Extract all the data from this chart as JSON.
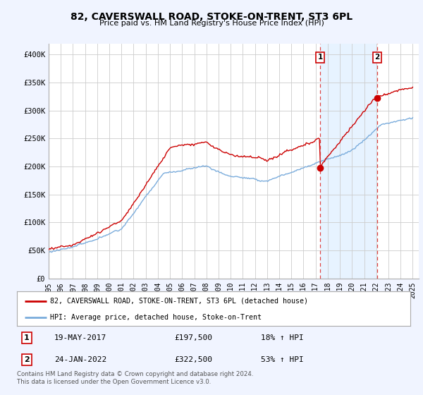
{
  "title": "82, CAVERSWALL ROAD, STOKE-ON-TRENT, ST3 6PL",
  "subtitle": "Price paid vs. HM Land Registry's House Price Index (HPI)",
  "ylim": [
    0,
    420000
  ],
  "yticks": [
    0,
    50000,
    100000,
    150000,
    200000,
    250000,
    300000,
    350000,
    400000
  ],
  "ytick_labels": [
    "£0",
    "£50K",
    "£100K",
    "£150K",
    "£200K",
    "£250K",
    "£300K",
    "£350K",
    "£400K"
  ],
  "sale1_date": 2017.38,
  "sale1_price": 197500,
  "sale1_label": "1",
  "sale1_text": "19-MAY-2017",
  "sale1_amount": "£197,500",
  "sale1_hpi": "18% ↑ HPI",
  "sale2_date": 2022.07,
  "sale2_price": 322500,
  "sale2_label": "2",
  "sale2_text": "24-JAN-2022",
  "sale2_amount": "£322,500",
  "sale2_hpi": "53% ↑ HPI",
  "hpi_color": "#7aacdc",
  "sale_color": "#cc0000",
  "vline_color": "#dd4444",
  "shade_color": "#ddeeff",
  "legend_label_sale": "82, CAVERSWALL ROAD, STOKE-ON-TRENT, ST3 6PL (detached house)",
  "legend_label_hpi": "HPI: Average price, detached house, Stoke-on-Trent",
  "footnote": "Contains HM Land Registry data © Crown copyright and database right 2024.\nThis data is licensed under the Open Government Licence v3.0.",
  "background_color": "#f0f4ff",
  "plot_bg": "#ffffff",
  "grid_color": "#cccccc",
  "xlim_start": 1995,
  "xlim_end": 2025.5
}
